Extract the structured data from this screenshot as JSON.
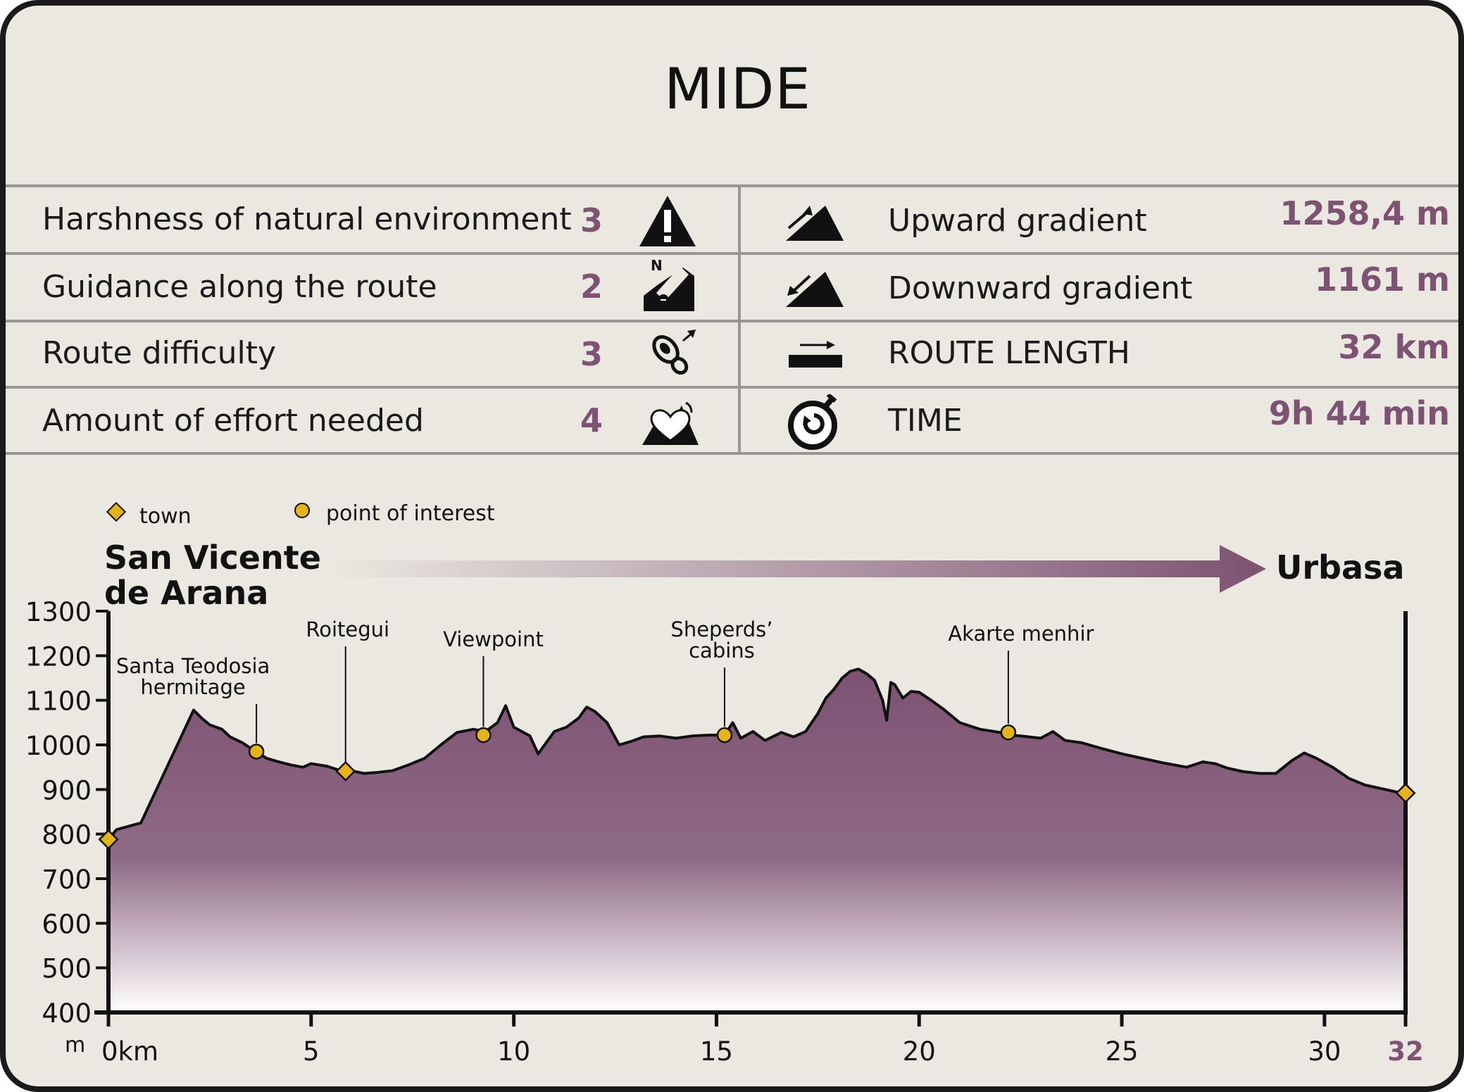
{
  "title": "MIDE",
  "mide": {
    "rows": [
      {
        "label": "Harshness of natural environment",
        "score": "3",
        "icon": "warning-triangle-icon"
      },
      {
        "label": "Guidance along the route",
        "score": "2",
        "icon": "compass-north-icon"
      },
      {
        "label": "Route difficulty",
        "score": "3",
        "icon": "footprint-icon"
      },
      {
        "label": "Amount of effort needed",
        "score": "4",
        "icon": "heart-mountain-icon"
      }
    ],
    "stats": [
      {
        "label": "Upward gradient",
        "value": "1258,4 m",
        "icon": "ascent-slope-icon"
      },
      {
        "label": "Downward gradient",
        "value": "1161 m",
        "icon": "descent-slope-icon"
      },
      {
        "label": "ROUTE LENGTH",
        "value": "32 km",
        "icon": "distance-arrow-icon"
      },
      {
        "label": "TIME",
        "value": "9h 44 min",
        "icon": "stopwatch-icon"
      }
    ]
  },
  "legend": {
    "town": "town",
    "poi": "point of interest"
  },
  "route": {
    "start_line1": "San Vicente",
    "start_line2": "de Arana",
    "end": "Urbasa"
  },
  "colors": {
    "fill_top": "#7d5272",
    "fill_bottom": "#ffffff",
    "accent": "#7d5272",
    "marker": "#e6b417",
    "background": "#eae8e0"
  },
  "chart_data": {
    "type": "area",
    "ylabel": "m",
    "ylim": [
      400,
      1300
    ],
    "xlim": [
      0,
      32
    ],
    "y_ticks": [
      "1300",
      "1200",
      "1100",
      "1000",
      "900",
      "800",
      "700",
      "600",
      "500",
      "400"
    ],
    "x_ticks": [
      "0km",
      "5",
      "10",
      "15",
      "20",
      "25",
      "30",
      "32"
    ],
    "series": [
      {
        "x": [
          0,
          0.2,
          0.8,
          2.1,
          2.3,
          2.5,
          2.8,
          3.0,
          3.3,
          3.6,
          3.9,
          4.2,
          4.5,
          4.8,
          5.0,
          5.4,
          5.8,
          6.0,
          6.3,
          6.6,
          7.0,
          7.4,
          7.8,
          8.2,
          8.6,
          9.0,
          9.3,
          9.6,
          9.8,
          10.0,
          10.2,
          10.4,
          10.6,
          10.8,
          11.0,
          11.3,
          11.6,
          11.8,
          12.0,
          12.3,
          12.6,
          12.9,
          13.2,
          13.6,
          14.0,
          14.4,
          14.8,
          15.2,
          15.4,
          15.6,
          15.9,
          16.2,
          16.6,
          16.9,
          17.2,
          17.5,
          17.7,
          17.9,
          18.1,
          18.3,
          18.5,
          18.7,
          18.9,
          19.1,
          19.2,
          19.3,
          19.4,
          19.6,
          19.8,
          20.0,
          20.3,
          20.6,
          21.0,
          21.5,
          22.0,
          22.2,
          22.5,
          23.0,
          23.3,
          23.6,
          24.0,
          24.5,
          25.0,
          25.5,
          26.0,
          26.3,
          26.6,
          27.0,
          27.3,
          27.6,
          28.0,
          28.4,
          28.8,
          29.2,
          29.5,
          29.8,
          30.2,
          30.6,
          31.0,
          31.5,
          32.0
        ],
        "y": [
          788,
          810,
          825,
          1078,
          1060,
          1045,
          1035,
          1018,
          1005,
          987,
          970,
          962,
          955,
          950,
          958,
          952,
          940,
          942,
          936,
          938,
          942,
          955,
          970,
          1000,
          1028,
          1035,
          1030,
          1050,
          1088,
          1040,
          1030,
          1020,
          980,
          1005,
          1030,
          1040,
          1060,
          1085,
          1075,
          1050,
          1000,
          1008,
          1018,
          1020,
          1015,
          1020,
          1022,
          1022,
          1050,
          1015,
          1030,
          1010,
          1028,
          1018,
          1030,
          1070,
          1105,
          1125,
          1150,
          1165,
          1170,
          1160,
          1145,
          1100,
          1055,
          1140,
          1135,
          1105,
          1120,
          1118,
          1100,
          1080,
          1050,
          1035,
          1028,
          1022,
          1020,
          1015,
          1030,
          1010,
          1005,
          992,
          980,
          970,
          960,
          955,
          950,
          962,
          958,
          948,
          940,
          936,
          936,
          965,
          982,
          970,
          950,
          925,
          910,
          900,
          890
        ]
      }
    ],
    "towns": [
      {
        "x": 0,
        "y": 788
      },
      {
        "x": 5.85,
        "y": 941
      },
      {
        "x": 32,
        "y": 892
      }
    ],
    "points_of_interest": [
      {
        "x": 3.65,
        "y": 985
      },
      {
        "x": 9.25,
        "y": 1022
      },
      {
        "x": 15.2,
        "y": 1022
      },
      {
        "x": 22.2,
        "y": 1028
      }
    ],
    "annotations": [
      {
        "lines": [
          "Santa Teodosia",
          "hermitage"
        ],
        "x": 3.65,
        "y": 985
      },
      {
        "lines": [
          "Roitegui"
        ],
        "x": 5.85,
        "y": 941
      },
      {
        "lines": [
          "Viewpoint"
        ],
        "x": 9.25,
        "y": 1022
      },
      {
        "lines": [
          "Sheperds’",
          "cabins"
        ],
        "x": 15.2,
        "y": 1022
      },
      {
        "lines": [
          "Akarte menhir"
        ],
        "x": 22.2,
        "y": 1028
      }
    ]
  }
}
